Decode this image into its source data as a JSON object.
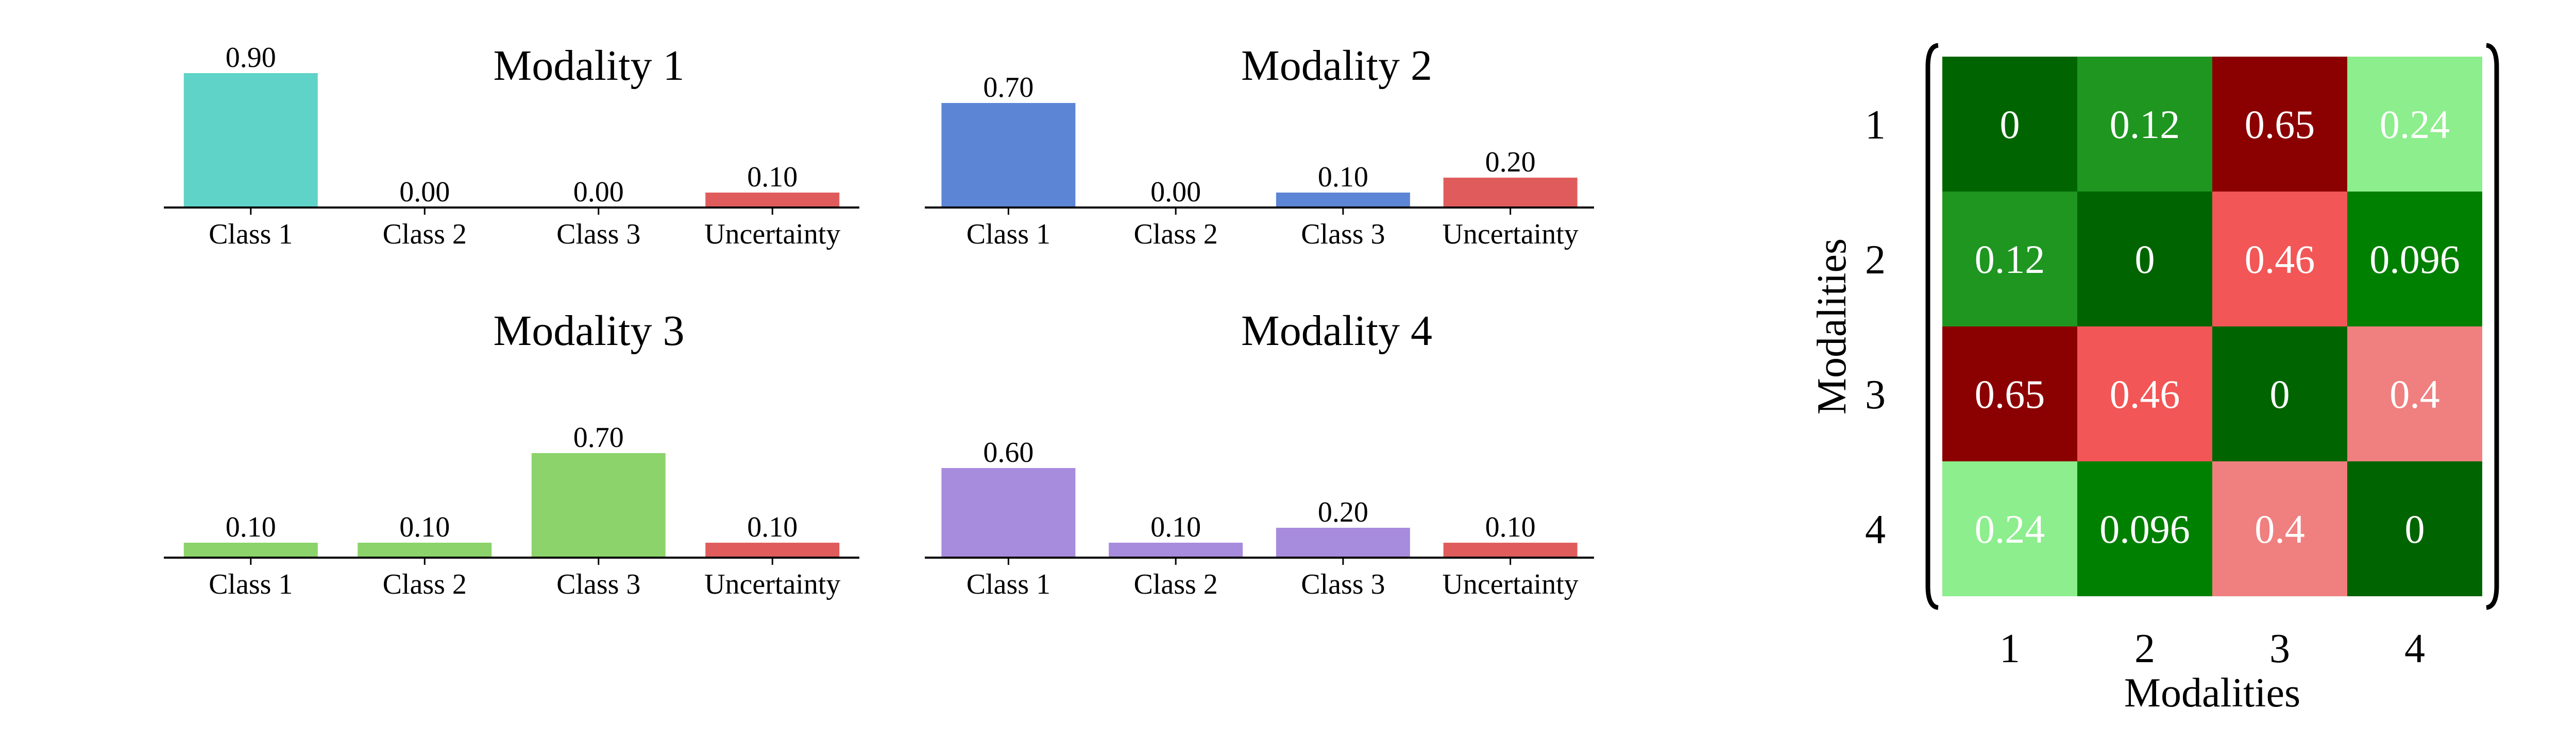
{
  "colors": {
    "bar_palette": [
      "#5fd3c8",
      "#5d85d5",
      "#8bd36a",
      "#a78bdd"
    ],
    "uncertainty": "#e05c5c",
    "heatmap_scale": [
      {
        "value": 0,
        "color": "#006400"
      },
      {
        "value": 0.096,
        "color": "#008000"
      },
      {
        "value": 0.12,
        "color": "#1e9620"
      },
      {
        "value": 0.24,
        "color": "#8cee8c"
      },
      {
        "value": 0.4,
        "color": "#f07f7f"
      },
      {
        "value": 0.46,
        "color": "#f25656"
      },
      {
        "value": 0.65,
        "color": "#8b0000"
      }
    ]
  },
  "chart_data": [
    {
      "type": "bar",
      "title": "Modality 1",
      "categories": [
        "Class 1",
        "Class 2",
        "Class 3",
        "Uncertainty"
      ],
      "values": [
        0.9,
        0.0,
        0.0,
        0.1
      ],
      "value_labels": [
        "0.90",
        "0.00",
        "0.00",
        "0.10"
      ],
      "ylim": [
        0,
        1
      ]
    },
    {
      "type": "bar",
      "title": "Modality 2",
      "categories": [
        "Class 1",
        "Class 2",
        "Class 3",
        "Uncertainty"
      ],
      "values": [
        0.7,
        0.0,
        0.1,
        0.2
      ],
      "value_labels": [
        "0.70",
        "0.00",
        "0.10",
        "0.20"
      ],
      "ylim": [
        0,
        1
      ]
    },
    {
      "type": "bar",
      "title": "Modality 3",
      "categories": [
        "Class 1",
        "Class 2",
        "Class 3",
        "Uncertainty"
      ],
      "values": [
        0.1,
        0.1,
        0.7,
        0.1
      ],
      "value_labels": [
        "0.10",
        "0.10",
        "0.70",
        "0.10"
      ],
      "ylim": [
        0,
        1
      ]
    },
    {
      "type": "bar",
      "title": "Modality 4",
      "categories": [
        "Class 1",
        "Class 2",
        "Class 3",
        "Uncertainty"
      ],
      "values": [
        0.6,
        0.1,
        0.2,
        0.1
      ],
      "value_labels": [
        "0.60",
        "0.10",
        "0.20",
        "0.10"
      ],
      "ylim": [
        0,
        1
      ]
    },
    {
      "type": "heatmap",
      "xlabel": "Modalities",
      "ylabel": "Modalities",
      "x_ticks": [
        "1",
        "2",
        "3",
        "4"
      ],
      "y_ticks": [
        "1",
        "2",
        "3",
        "4"
      ],
      "values": [
        [
          0,
          0.12,
          0.65,
          0.24
        ],
        [
          0.12,
          0,
          0.46,
          0.096
        ],
        [
          0.65,
          0.46,
          0,
          0.4
        ],
        [
          0.24,
          0.096,
          0.4,
          0
        ]
      ],
      "cell_labels": [
        [
          "0",
          "0.12",
          "0.65",
          "0.24"
        ],
        [
          "0.12",
          "0",
          "0.46",
          "0.096"
        ],
        [
          "0.65",
          "0.46",
          "0",
          "0.4"
        ],
        [
          "0.24",
          "0.096",
          "0.4",
          "0"
        ]
      ]
    }
  ]
}
